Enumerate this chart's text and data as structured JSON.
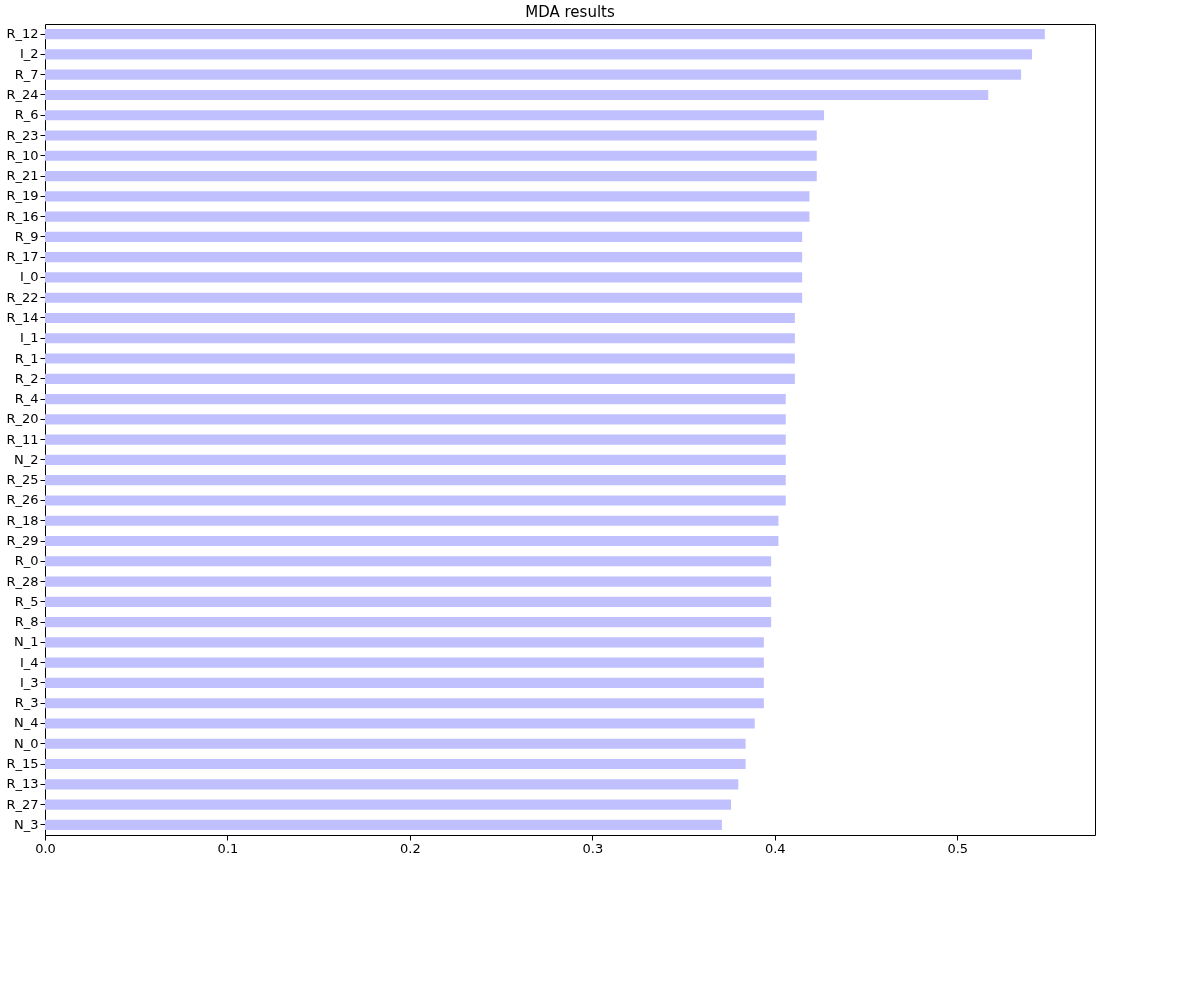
{
  "chart_data": {
    "type": "bar",
    "orientation": "horizontal",
    "title": "MDA results",
    "categories": [
      "R_12",
      "I_2",
      "R_7",
      "R_24",
      "R_6",
      "R_23",
      "R_10",
      "R_21",
      "R_19",
      "R_16",
      "R_9",
      "R_17",
      "I_0",
      "R_22",
      "R_14",
      "I_1",
      "R_1",
      "R_2",
      "R_4",
      "R_20",
      "R_11",
      "N_2",
      "R_25",
      "R_26",
      "R_18",
      "R_29",
      "R_0",
      "R_28",
      "R_5",
      "R_8",
      "N_1",
      "I_4",
      "I_3",
      "R_3",
      "N_4",
      "N_0",
      "R_15",
      "R_13",
      "R_27",
      "N_3"
    ],
    "values": [
      0.548,
      0.541,
      0.535,
      0.517,
      0.427,
      0.423,
      0.423,
      0.423,
      0.419,
      0.419,
      0.415,
      0.415,
      0.415,
      0.415,
      0.411,
      0.411,
      0.411,
      0.411,
      0.406,
      0.406,
      0.406,
      0.406,
      0.406,
      0.406,
      0.402,
      0.402,
      0.398,
      0.398,
      0.398,
      0.398,
      0.394,
      0.394,
      0.394,
      0.394,
      0.389,
      0.384,
      0.384,
      0.38,
      0.376,
      0.371
    ],
    "color": "#c0c0ff",
    "xlim": [
      0,
      0.5755
    ],
    "xticks": [
      {
        "value": 0,
        "label": "0.0"
      },
      0.1,
      0.2,
      0.3,
      0.4,
      0.5
    ],
    "grid": false
  }
}
